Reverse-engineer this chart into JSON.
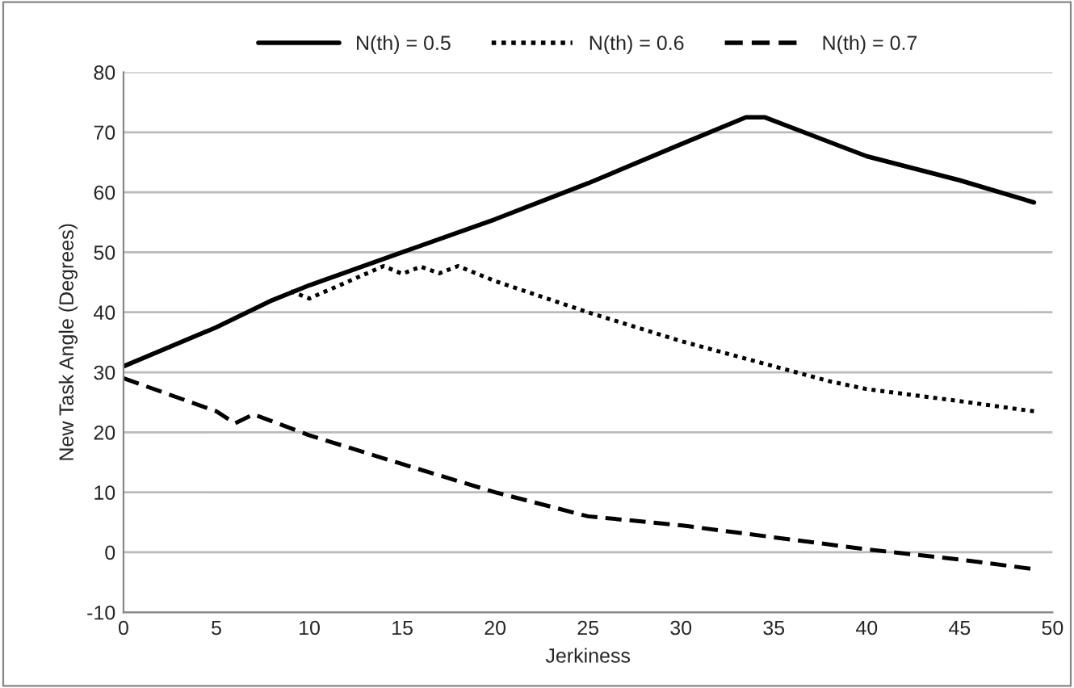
{
  "chart_data": {
    "type": "line",
    "xlabel": "Jerkiness",
    "ylabel": "New Task Angle (Degrees)",
    "xlim": [
      0,
      50
    ],
    "xticks": [
      0,
      5,
      10,
      15,
      20,
      25,
      30,
      35,
      40,
      45,
      50
    ],
    "ylim": [
      -10,
      80
    ],
    "yticks": [
      -10,
      0,
      10,
      20,
      30,
      40,
      50,
      60,
      70,
      80
    ],
    "grid": "y",
    "legend": "top",
    "marker": "none",
    "series": [
      {
        "name": "N(th) = 0.5",
        "color": "#000000",
        "line_style": "solid",
        "x": [
          0,
          5,
          8,
          10,
          15,
          20,
          25,
          30,
          33.5,
          34.5,
          40,
          45,
          49
        ],
        "values": [
          31,
          37.5,
          42,
          44.5,
          50,
          55.5,
          61.5,
          68,
          72.5,
          72.5,
          66,
          62,
          58.3
        ]
      },
      {
        "name": "N(th) = 0.6",
        "color": "#000000",
        "line_style": "dotted",
        "x": [
          9,
          10,
          14,
          15,
          16,
          17,
          18,
          20,
          25,
          30,
          35,
          38,
          40,
          45,
          49
        ],
        "values": [
          43.5,
          42.3,
          47.7,
          46.4,
          47.6,
          46.5,
          47.7,
          45.2,
          40,
          35.2,
          31,
          28.5,
          27.2,
          25.2,
          23.5
        ]
      },
      {
        "name": "N(th) = 0.7",
        "color": "#000000",
        "line_style": "dashed",
        "x": [
          0,
          5,
          6,
          7,
          10,
          15,
          20,
          25,
          30,
          35,
          40,
          45,
          49
        ],
        "values": [
          29,
          23.5,
          21.5,
          23,
          19.5,
          14.7,
          10,
          6,
          4.5,
          2.5,
          0.5,
          -1.2,
          -2.8
        ]
      }
    ]
  }
}
